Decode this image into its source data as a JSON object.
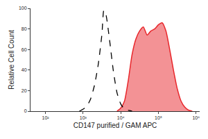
{
  "chart_data": {
    "type": "line",
    "x_label": "CD147 purified / GAM APC",
    "y_label": "Relative Cell Count",
    "log": "x",
    "grid": false,
    "xlim": [
      40,
      1250000
    ],
    "xticks": [
      {
        "value": 100,
        "label": "10²"
      },
      {
        "value": 1000,
        "label": "10³"
      },
      {
        "value": 10000,
        "label": "10⁴"
      },
      {
        "value": 100000,
        "label": "10⁵"
      },
      {
        "value": 1000000,
        "label": "10⁶"
      }
    ],
    "ylim": [
      0,
      100
    ],
    "yticks": [
      0,
      20,
      40,
      60,
      80,
      100
    ],
    "series": [
      {
        "type": "area",
        "color": "#e8262b",
        "line_style": "solid",
        "x": [
          7943,
          10000,
          12589,
          15849,
          19953,
          25119,
          31623,
          39811,
          50119,
          63096,
          79433,
          100000,
          125893,
          158489,
          199526,
          251189,
          316228,
          398107,
          501187,
          630957,
          794328
        ],
        "values": [
          0,
          3,
          10,
          30,
          55,
          70,
          78,
          82,
          74,
          78,
          80,
          84,
          86,
          78,
          60,
          40,
          22,
          10,
          4,
          1,
          0
        ]
      },
      {
        "type": "line",
        "color": "#000000",
        "line_style": "dash",
        "x": [
          794,
          1000,
          1259,
          1585,
          1995,
          2512,
          3162,
          3548,
          3981,
          5012,
          6310,
          7943,
          10000,
          12589,
          15849,
          19953
        ],
        "values": [
          0,
          2,
          5,
          12,
          25,
          45,
          75,
          98,
          95,
          70,
          40,
          18,
          7,
          2,
          1,
          0
        ]
      }
    ]
  }
}
